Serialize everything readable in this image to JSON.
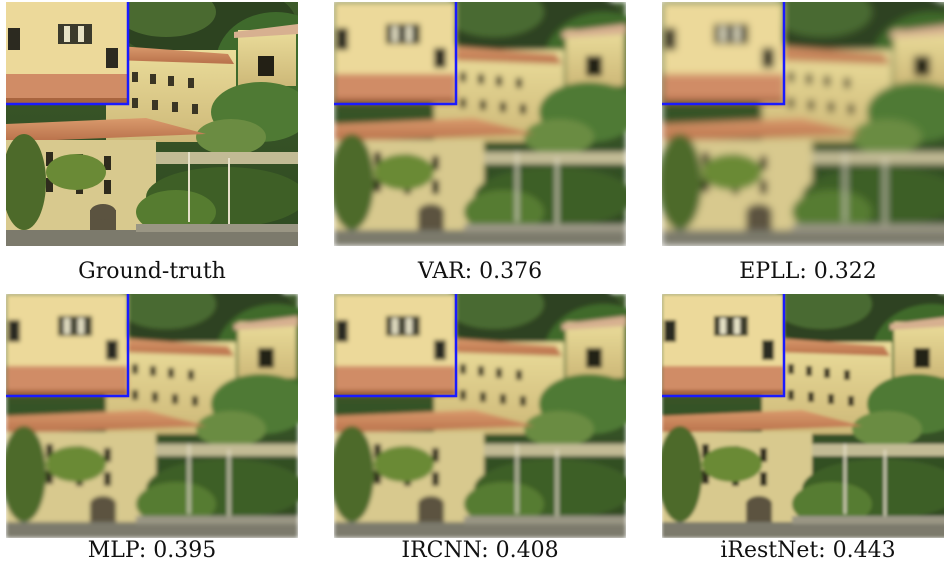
{
  "figure": {
    "panels": [
      {
        "id": "ground-truth",
        "caption": "Ground-truth",
        "blur": 0
      },
      {
        "id": "var",
        "caption": "VAR: 0.376",
        "blur": 2.8
      },
      {
        "id": "epll",
        "caption": "EPLL: 0.322",
        "blur": 3.6
      },
      {
        "id": "mlp",
        "caption": "MLP: 0.395",
        "blur": 2.2
      },
      {
        "id": "ircnn",
        "caption": "IRCNN: 0.408",
        "blur": 2.0
      },
      {
        "id": "irestnet",
        "caption": "iRestNet: 0.443",
        "blur": 1.6
      }
    ],
    "inset_border_color": "#1a1aff"
  }
}
